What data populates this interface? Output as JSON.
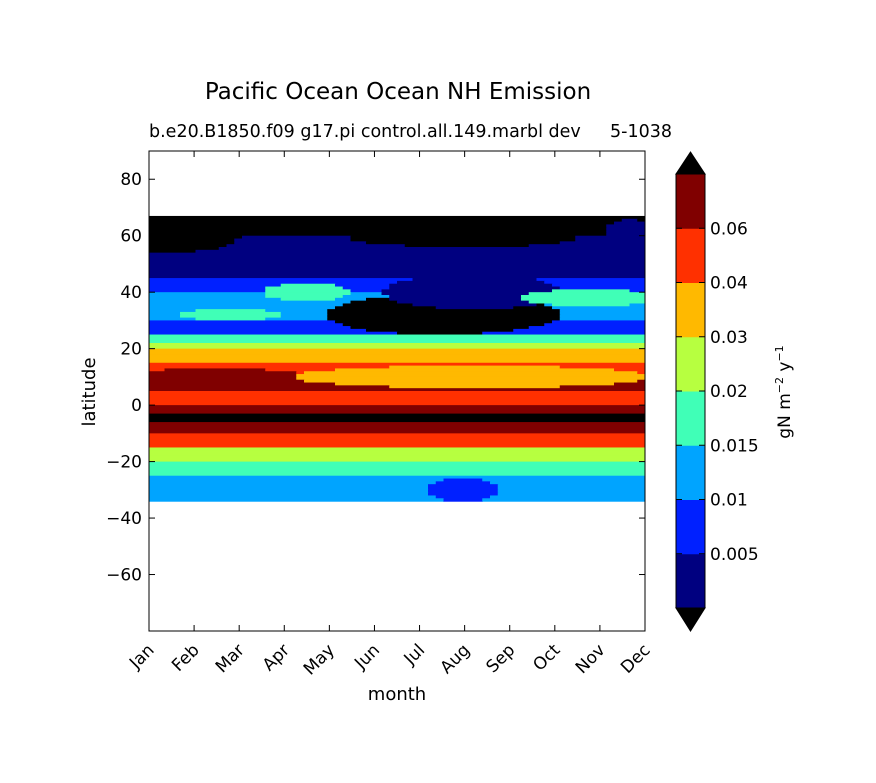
{
  "chart_data": {
    "type": "contour",
    "title": "Pacific Ocean Ocean NH Emission",
    "subtitle_left": "b.e20.B1850.f09 g17.pi control.all.149.marbl dev",
    "subtitle_right": "5-1038",
    "xlabel": "month",
    "ylabel": "latitude",
    "x_ticks": [
      "Jan",
      "Feb",
      "Mar",
      "Apr",
      "May",
      "Jun",
      "Jul",
      "Aug",
      "Sep",
      "Oct",
      "Nov",
      "Dec"
    ],
    "y_ticks": [
      80,
      60,
      40,
      20,
      0,
      -20,
      -40,
      -60
    ],
    "y_tick_labels": [
      "80",
      "60",
      "40",
      "20",
      "0",
      "−20",
      "−40",
      "−60"
    ],
    "xlim": [
      0,
      11
    ],
    "ylim": [
      -80,
      90
    ],
    "data_lat_range": [
      -34,
      67
    ],
    "colorbar": {
      "label_main": "gN m",
      "label_exp1": "−2",
      "label_mid": " y",
      "label_exp2": "−1",
      "levels": [
        0,
        0.005,
        0.01,
        0.015,
        0.02,
        0.03,
        0.04,
        0.06,
        0.07
      ],
      "tick_labels": [
        "0.005",
        "0.01",
        "0.015",
        "0.02",
        "0.03",
        "0.04",
        "0.06"
      ],
      "tick_values": [
        0.005,
        0.01,
        0.015,
        0.02,
        0.03,
        0.04,
        0.06
      ],
      "colors": [
        "#000080",
        "#0020ff",
        "#00a4ff",
        "#40ffb7",
        "#b7ff40",
        "#ffb900",
        "#ff3000",
        "#800000"
      ],
      "under_color": "#000000",
      "over_color": "#000000"
    },
    "grid": {
      "lats": [
        67,
        60,
        50,
        45,
        40,
        35,
        30,
        25,
        22,
        20,
        15,
        10,
        5,
        0,
        -3,
        -6,
        -10,
        -15,
        -20,
        -25,
        -30,
        -34
      ],
      "band_values": [
        -1,
        0.0,
        0.003,
        0.008,
        0.012,
        0.012,
        0.008,
        0.018,
        0.025,
        0.035,
        0.05,
        0.065,
        0.045,
        0.065,
        -1,
        0.065,
        0.045,
        0.025,
        0.018,
        0.012,
        0.012,
        0.012
      ],
      "anomalies": [
        {
          "month": 6.5,
          "lat": 32,
          "dm": 2.6,
          "dlat": 7,
          "value": -1
        },
        {
          "month": 7.2,
          "lat": 40,
          "dm": 2.0,
          "dlat": 6,
          "value": 0.003
        },
        {
          "month": 1.5,
          "lat": 10,
          "dm": 2.0,
          "dlat": 3,
          "value": 0.065
        },
        {
          "month": 7.2,
          "lat": 10,
          "dm": 4.0,
          "dlat": 4,
          "value": 0.035
        },
        {
          "month": 3.5,
          "lat": 40,
          "dm": 1.0,
          "dlat": 3,
          "value": 0.018
        },
        {
          "month": 1.8,
          "lat": 32,
          "dm": 1.2,
          "dlat": 2,
          "value": 0.018
        },
        {
          "month": 9.8,
          "lat": 38,
          "dm": 1.5,
          "dlat": 3,
          "value": 0.018
        },
        {
          "month": 10.6,
          "lat": 60,
          "dm": 0.5,
          "dlat": 6,
          "value": 0.0
        },
        {
          "month": 7.0,
          "lat": -30,
          "dm": 0.8,
          "dlat": 4,
          "value": 0.008
        },
        {
          "month": 7.0,
          "lat": 59,
          "dm": 2.5,
          "dlat": 3,
          "value": -1
        },
        {
          "month": 0.5,
          "lat": 60,
          "dm": 1.5,
          "dlat": 6,
          "value": -1
        }
      ]
    }
  }
}
